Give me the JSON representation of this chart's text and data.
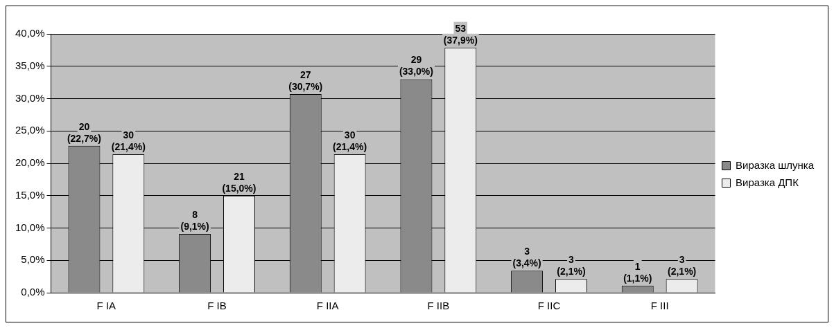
{
  "chart_data": {
    "type": "bar",
    "categories": [
      "F IA",
      "F IB",
      "F IIA",
      "F IIB",
      "F IIC",
      "F III"
    ],
    "series": [
      {
        "name": "Виразка шлунка",
        "color": "#8a8a8a",
        "values": [
          22.7,
          9.1,
          30.7,
          33.0,
          3.4,
          1.1
        ],
        "value_labels": [
          "20 (22,7%)",
          "8 (9,1%)",
          "27 (30,7%)",
          "29 (33,0%)",
          "3 (3,4%)",
          "1 (1,1%)"
        ]
      },
      {
        "name": "Виразка ДПК",
        "color": "#ececec",
        "values": [
          21.4,
          15.0,
          21.4,
          37.9,
          2.1,
          2.1
        ],
        "value_labels": [
          "30 (21,4%)",
          "21 (15,0%)",
          "30 (21,4%)",
          "53 (37,9%)",
          "3 (2,1%)",
          "3 (2,1%)"
        ]
      }
    ],
    "ylim": [
      0,
      40
    ],
    "yticks": [
      {
        "value": 0,
        "label": "0,0%"
      },
      {
        "value": 5,
        "label": "5,0%"
      },
      {
        "value": 10,
        "label": "10,0%"
      },
      {
        "value": 15,
        "label": "15,0%"
      },
      {
        "value": 20,
        "label": "20,0%"
      },
      {
        "value": 25,
        "label": "25,0%"
      },
      {
        "value": 30,
        "label": "30,0%"
      },
      {
        "value": 35,
        "label": "35,0%"
      },
      {
        "value": 40,
        "label": "40,0%"
      }
    ],
    "grid": "y",
    "legend": "right"
  }
}
